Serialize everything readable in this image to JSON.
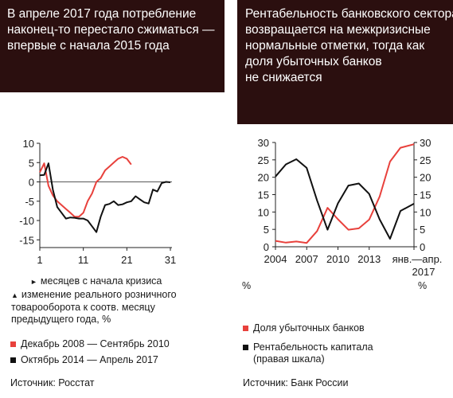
{
  "left": {
    "title": [
      "В апреле 2017 года потребление",
      "наконец-то перестало сжиматься —",
      "впервые с начала 2015 года"
    ],
    "x_note": "месяцев с начала кризиса",
    "y_note": "изменение реального розничного товарооборота к соотв. месяцу предыдущего года, %",
    "legend": [
      {
        "label": "Декабрь 2008 — Сентябрь 2010",
        "color": "#e8413c"
      },
      {
        "label": "Октябрь 2014 — Апрель 2017",
        "color": "#111111"
      }
    ],
    "source": "Источник: Росстат"
  },
  "right": {
    "title": [
      "Рентабельность банковского сектора",
      "возвращается на межкризисные",
      "нормальные отметки, тогда как",
      "доля убыточных банков",
      "не снижается"
    ],
    "left_unit": "%",
    "right_unit": "%",
    "x_tick_last": [
      "янв.—апр.",
      "2017"
    ],
    "legend": [
      {
        "label": "Доля убыточных банков",
        "color": "#e8413c"
      },
      {
        "label": "Рентабельность капитала (правая шкала)",
        "color": "#111111"
      }
    ],
    "source": "Источник: Банк России"
  },
  "chart_data": [
    {
      "type": "line",
      "title": "В апреле 2017 года потребление наконец-то перестало сжиматься — впервые с начала 2015 года",
      "xlabel": "месяцев с начала кризиса",
      "ylabel": "изменение реального розничного товарооборота к соотв. месяцу предыдущего года, %",
      "x_ticks": [
        1,
        11,
        21,
        31
      ],
      "y_ticks": [
        10,
        5,
        0,
        -5,
        -10,
        -15
      ],
      "xlim": [
        1,
        31
      ],
      "ylim": [
        -17,
        10
      ],
      "grid": false,
      "series": [
        {
          "name": "Декабрь 2008 — Сентябрь 2010",
          "color": "#e8413c",
          "x": [
            1,
            2,
            3,
            4,
            5,
            6,
            7,
            8,
            9,
            10,
            11,
            12,
            13,
            14,
            15,
            16,
            17,
            18,
            19,
            20,
            21,
            22
          ],
          "y": [
            2.5,
            4.8,
            -1,
            -3.5,
            -5,
            -6,
            -7,
            -8,
            -9,
            -9,
            -8,
            -5,
            -3,
            0,
            1,
            3,
            4,
            5,
            6,
            6.5,
            6,
            4.5
          ]
        },
        {
          "name": "Октябрь 2014 — Апрель 2017",
          "color": "#111111",
          "x": [
            1,
            2,
            3,
            4,
            5,
            6,
            7,
            8,
            9,
            10,
            11,
            12,
            13,
            14,
            15,
            16,
            17,
            18,
            19,
            20,
            21,
            22,
            23,
            24,
            25,
            26,
            27,
            28,
            29,
            30,
            31
          ],
          "y": [
            1.7,
            1.8,
            4.8,
            -2,
            -6.5,
            -8,
            -9.5,
            -9.2,
            -9.3,
            -9.5,
            -9.5,
            -10,
            -11.5,
            -13,
            -9,
            -6,
            -5.7,
            -5,
            -6,
            -5.8,
            -5.3,
            -5,
            -3.7,
            -4.5,
            -5.3,
            -5.6,
            -2,
            -2.5,
            -0.3,
            0,
            -0.1
          ]
        }
      ]
    },
    {
      "type": "line",
      "title": "Рентабельность банковского сектора возвращается на межкризисные нормальные отметки, тогда как доля убыточных банков не снижается",
      "x_ticks": [
        "2004",
        "2007",
        "2010",
        "2013",
        "янв.—апр. 2017"
      ],
      "y_ticks_left": [
        0,
        5,
        10,
        15,
        20,
        25,
        30
      ],
      "y_ticks_right": [
        0,
        5,
        10,
        15,
        20,
        25,
        30
      ],
      "ylim": [
        0,
        30
      ],
      "xlim": [
        2004,
        2017.3
      ],
      "grid": false,
      "series": [
        {
          "name": "Доля убыточных банков",
          "axis": "left",
          "color": "#e8413c",
          "x": [
            2004,
            2005,
            2006,
            2007,
            2008,
            2009,
            2010,
            2011,
            2012,
            2013,
            2014,
            2015,
            2016,
            2017.3
          ],
          "y": [
            1.7,
            1.2,
            1.5,
            1.1,
            4.5,
            11.2,
            7.9,
            4.9,
            5.3,
            7.8,
            14.4,
            24.5,
            28.5,
            29.5
          ]
        },
        {
          "name": "Рентабельность капитала (правая шкала)",
          "axis": "right",
          "color": "#111111",
          "x": [
            2004,
            2005,
            2006,
            2007,
            2008,
            2009,
            2010,
            2011,
            2012,
            2013,
            2014,
            2015,
            2016,
            2017.3
          ],
          "y": [
            20.2,
            23.7,
            25.2,
            22.7,
            13.3,
            4.9,
            12.5,
            17.6,
            18.2,
            15.2,
            7.9,
            2.3,
            10.3,
            12.4
          ]
        }
      ]
    }
  ]
}
